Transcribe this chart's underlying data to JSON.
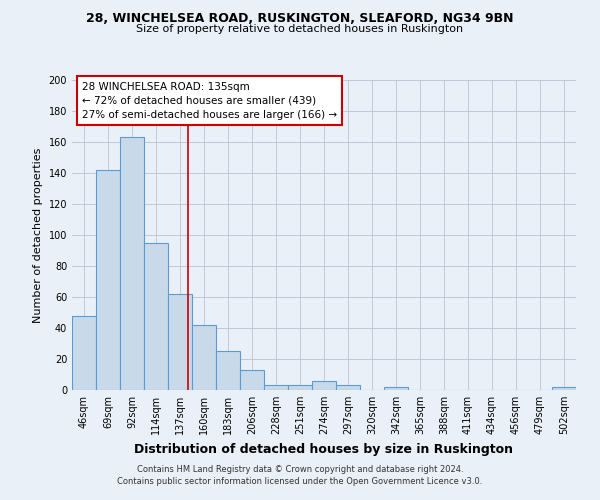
{
  "title": "28, WINCHELSEA ROAD, RUSKINGTON, SLEAFORD, NG34 9BN",
  "subtitle": "Size of property relative to detached houses in Ruskington",
  "xlabel": "Distribution of detached houses by size in Ruskington",
  "ylabel": "Number of detached properties",
  "bar_labels": [
    "46sqm",
    "69sqm",
    "92sqm",
    "114sqm",
    "137sqm",
    "160sqm",
    "183sqm",
    "206sqm",
    "228sqm",
    "251sqm",
    "274sqm",
    "297sqm",
    "320sqm",
    "342sqm",
    "365sqm",
    "388sqm",
    "411sqm",
    "434sqm",
    "456sqm",
    "479sqm",
    "502sqm"
  ],
  "bar_values": [
    48,
    142,
    163,
    95,
    62,
    42,
    25,
    13,
    3,
    3,
    6,
    3,
    0,
    2,
    0,
    0,
    0,
    0,
    0,
    0,
    2
  ],
  "bar_color": "#c8daea",
  "bar_edge_color": "#5b9bd5",
  "ylim": [
    0,
    200
  ],
  "yticks": [
    0,
    20,
    40,
    60,
    80,
    100,
    120,
    140,
    160,
    180,
    200
  ],
  "property_line_x": 4.35,
  "annotation_title": "28 WINCHELSEA ROAD: 135sqm",
  "annotation_line1": "← 72% of detached houses are smaller (439)",
  "annotation_line2": "27% of semi-detached houses are larger (166) →",
  "annotation_box_color": "#ffffff",
  "annotation_box_edge_color": "#cc0000",
  "vline_color": "#cc0000",
  "grid_color": "#c0c8d8",
  "footnote1": "Contains HM Land Registry data © Crown copyright and database right 2024.",
  "footnote2": "Contains public sector information licensed under the Open Government Licence v3.0.",
  "bg_color": "#eaf0f8",
  "title_fontsize": 9,
  "subtitle_fontsize": 8,
  "ylabel_fontsize": 8,
  "xlabel_fontsize": 9,
  "tick_fontsize": 7,
  "footnote_fontsize": 6
}
